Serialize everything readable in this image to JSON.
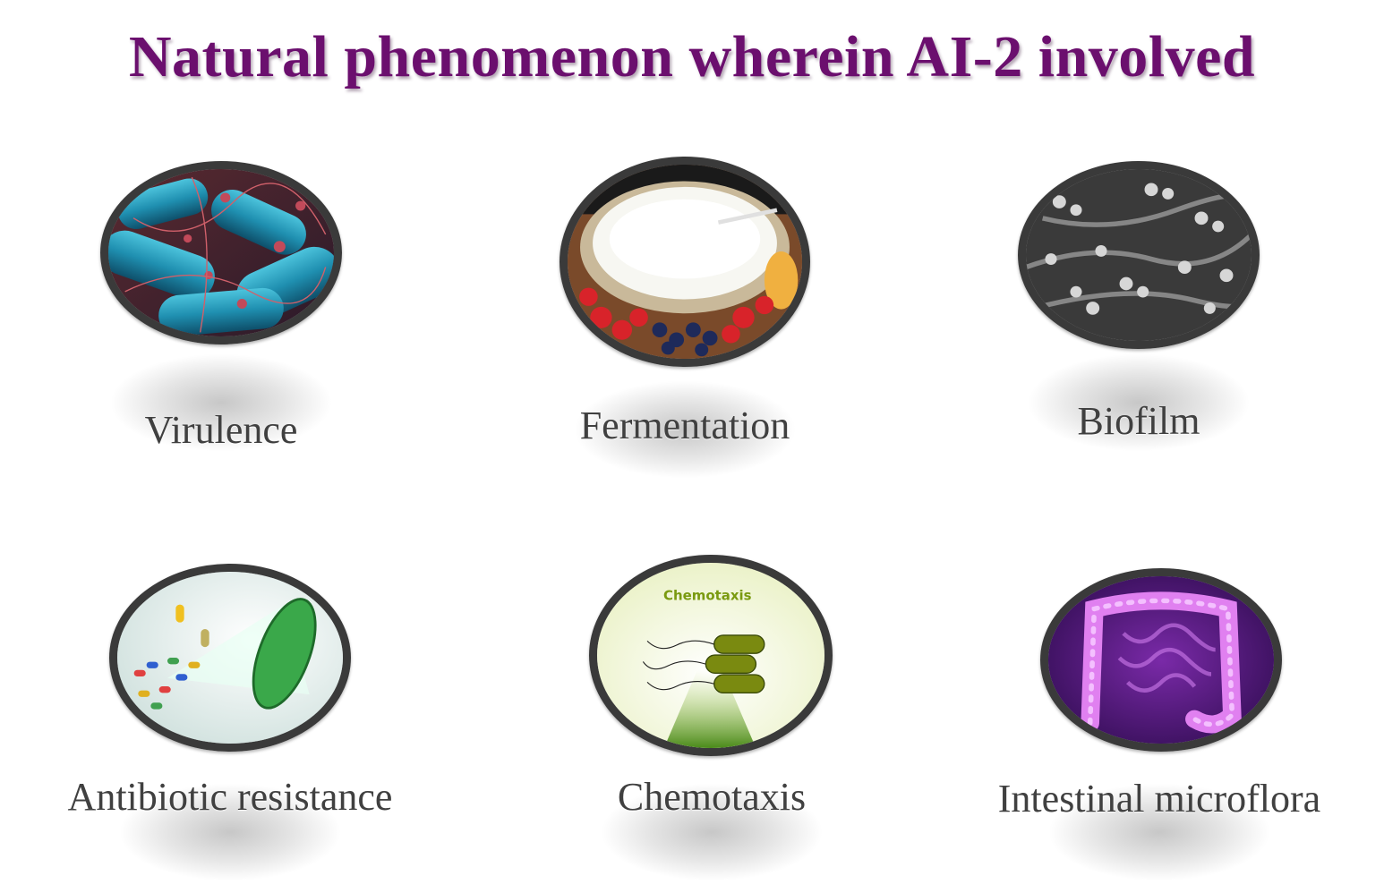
{
  "title": "Natural phenomenon wherein AI-2 involved",
  "items": [
    {
      "label": "Virulence",
      "image": "bacteria-rods-image"
    },
    {
      "label": "Fermentation",
      "image": "yogurt-bowl-image"
    },
    {
      "label": "Biofilm",
      "image": "biofilm-micrograph-image"
    },
    {
      "label": "Antibiotic resistance",
      "image": "pills-bacterium-image"
    },
    {
      "label": "Chemotaxis",
      "image": "chemotaxis-bacteria-image",
      "inner_text": "Chemotaxis"
    },
    {
      "label": "Intestinal microflora",
      "image": "intestine-xray-image"
    }
  ],
  "colors": {
    "title": "#6b0f6e",
    "label": "#404040",
    "lens_border": "#3a3a3a"
  }
}
